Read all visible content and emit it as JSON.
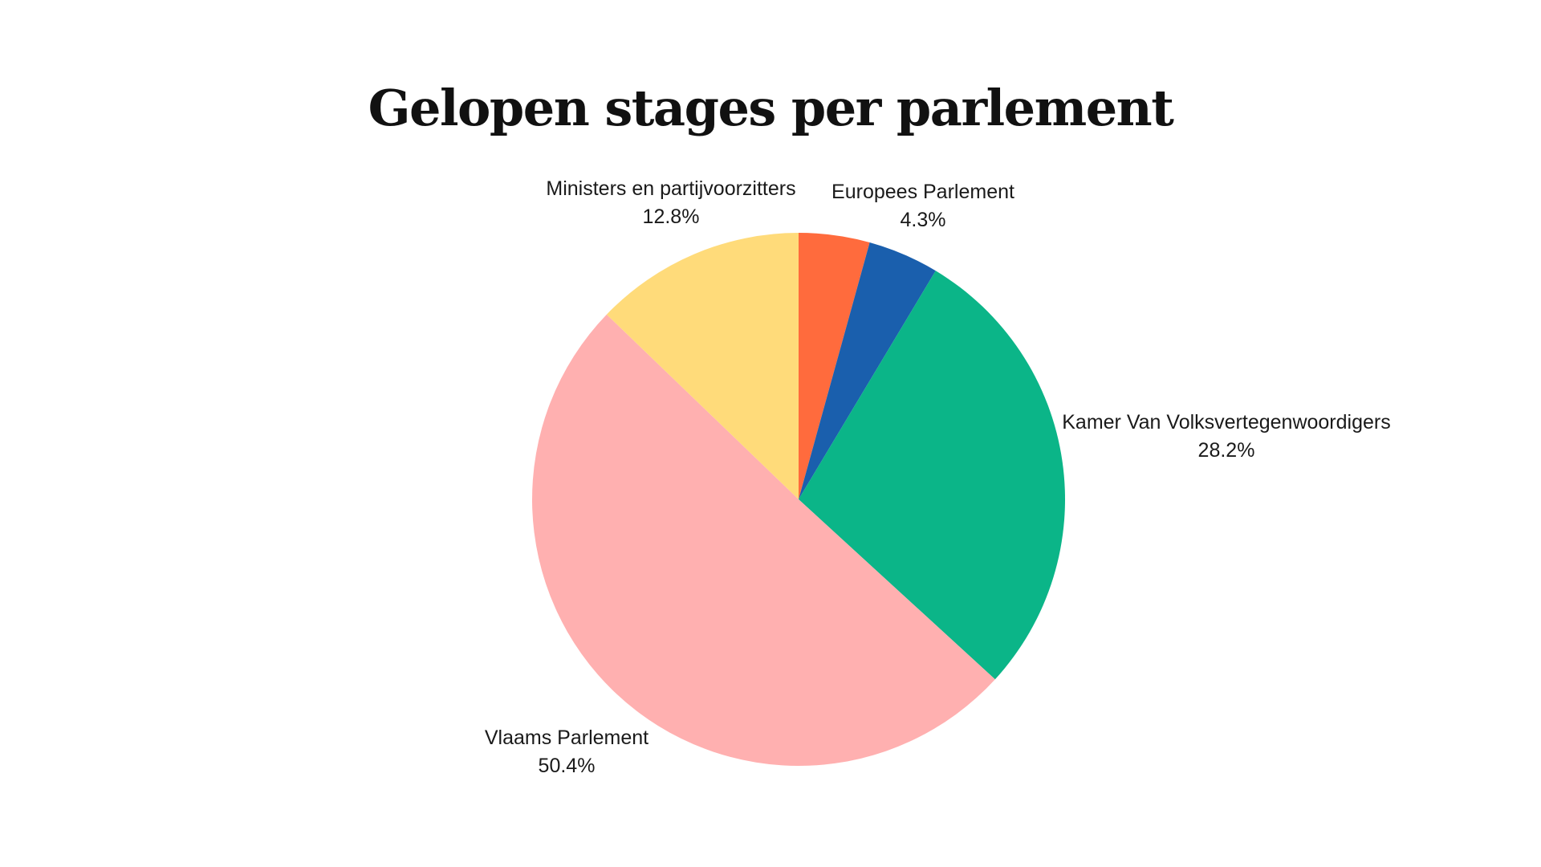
{
  "chart_data": {
    "type": "pie",
    "title": "Gelopen stages per parlement",
    "slices": [
      {
        "name": "Europees Parlement",
        "value": 4.3,
        "label": "4.3%",
        "color": "#FF6B3D"
      },
      {
        "name": "",
        "value": 4.3,
        "label": "",
        "color": "#1A5FAD"
      },
      {
        "name": "Kamer Van Volksvertegenwoordigers",
        "value": 28.2,
        "label": "28.2%",
        "color": "#0BB588"
      },
      {
        "name": "Vlaams Parlement",
        "value": 50.4,
        "label": "50.4%",
        "color": "#FFB0B0"
      },
      {
        "name": "Ministers en partijvoorzitters",
        "value": 12.8,
        "label": "12.8%",
        "color": "#FFDB7A"
      }
    ],
    "start_angle": "top",
    "direction": "clockwise",
    "labels": "outside"
  }
}
